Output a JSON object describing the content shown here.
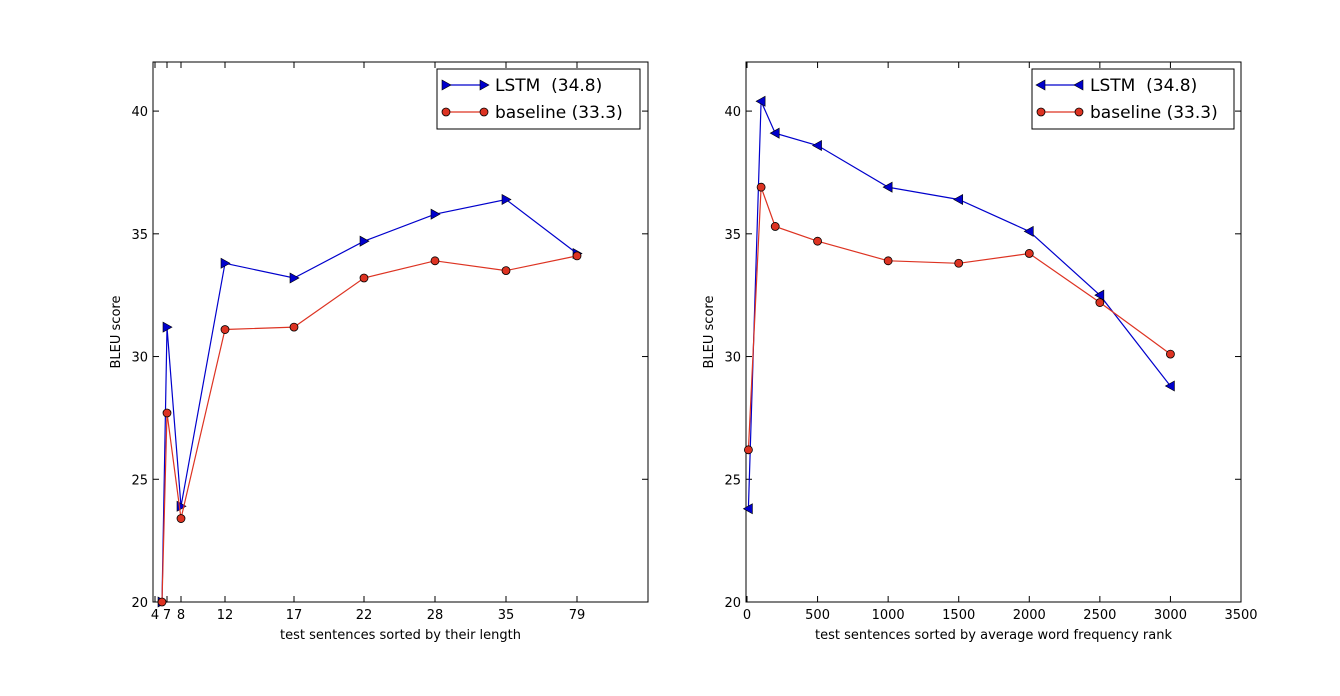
{
  "chart_data": [
    {
      "type": "line",
      "title": "",
      "xlabel": "test sentences sorted by their length",
      "ylabel": "BLEU score",
      "ylim": [
        20,
        42
      ],
      "yticks": [
        20,
        25,
        30,
        35,
        40
      ],
      "xlim": [
        4,
        79
      ],
      "xticks": [
        "4",
        "7",
        "8",
        "12",
        "17",
        "22",
        "28",
        "35",
        "79"
      ],
      "grid": false,
      "legend_position": "top-right",
      "series": [
        {
          "name": "LSTM  (34.8)",
          "color": "#0000cc",
          "marker": "triangle-right",
          "x": [
            5,
            7,
            9,
            12,
            17,
            22,
            28,
            35,
            79
          ],
          "values": [
            20,
            31.2,
            23.9,
            33.8,
            33.2,
            34.7,
            35.8,
            36.4,
            34.2
          ]
        },
        {
          "name": "baseline (33.3)",
          "color": "#dd3322",
          "marker": "circle",
          "x": [
            5,
            7,
            9,
            12,
            17,
            22,
            28,
            35,
            79
          ],
          "values": [
            20,
            27.7,
            23.4,
            31.1,
            31.2,
            33.2,
            33.9,
            33.5,
            34.1
          ]
        }
      ]
    },
    {
      "type": "line",
      "title": "",
      "xlabel": "test sentences sorted by average word frequency rank",
      "ylabel": "BLEU score",
      "ylim": [
        20,
        42
      ],
      "yticks": [
        20,
        25,
        30,
        35,
        40
      ],
      "xlim": [
        0,
        3500
      ],
      "xticks": [
        "0",
        "500",
        "1000",
        "1500",
        "2000",
        "2500",
        "3000",
        "3500"
      ],
      "grid": false,
      "legend_position": "top-right",
      "series": [
        {
          "name": "LSTM  (34.8)",
          "color": "#0000cc",
          "marker": "triangle-left",
          "x": [
            10,
            100,
            200,
            500,
            1000,
            1500,
            2000,
            2500,
            3000
          ],
          "values": [
            23.8,
            40.4,
            39.1,
            38.6,
            36.9,
            36.4,
            35.1,
            32.5,
            28.8
          ]
        },
        {
          "name": "baseline (33.3)",
          "color": "#dd3322",
          "marker": "circle",
          "x": [
            10,
            100,
            200,
            500,
            1000,
            1500,
            2000,
            2500,
            3000
          ],
          "values": [
            26.2,
            36.9,
            35.3,
            34.7,
            33.9,
            33.8,
            34.2,
            32.2,
            30.1
          ]
        }
      ]
    }
  ]
}
